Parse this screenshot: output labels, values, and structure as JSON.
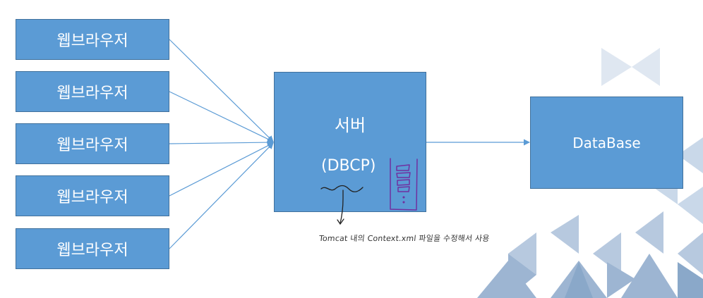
{
  "browsers": [
    {
      "label": "웹브라우저"
    },
    {
      "label": "웹브라우저"
    },
    {
      "label": "웹브라우저"
    },
    {
      "label": "웹브라우저"
    },
    {
      "label": "웹브라우저"
    }
  ],
  "server": {
    "title": "서버",
    "subtitle": "(DBCP)"
  },
  "database": {
    "label": "DataBase"
  },
  "annotation": {
    "text": "Tomcat 내의 Context.xml 파일을 수정해서 사용"
  },
  "colors": {
    "box_fill": "#5b9bd5",
    "box_border": "#41719c",
    "arrow": "#5b9bd5",
    "handwriting": "#7030a0"
  }
}
